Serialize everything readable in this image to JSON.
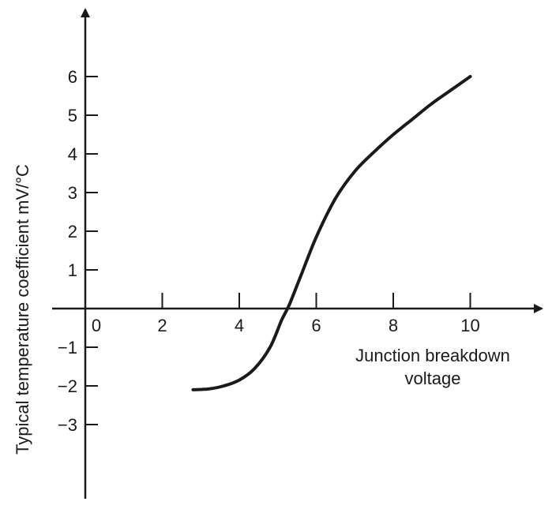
{
  "chart_data": {
    "type": "line",
    "title": "",
    "xlabel": [
      "Junction breakdown",
      "voltage"
    ],
    "ylabel": "Typical temperature coefficient mV/°C",
    "xlim": [
      -1,
      12
    ],
    "ylim": [
      -5,
      7.5
    ],
    "x_ticks": [
      0,
      2,
      4,
      6,
      8,
      10
    ],
    "y_ticks": [
      6,
      5,
      4,
      3,
      2,
      1,
      -1,
      -2,
      -3
    ],
    "series": [
      {
        "x": [
          2.8,
          3.2,
          3.6,
          4.0,
          4.4,
          4.8,
          5.1,
          5.3,
          5.6,
          6.0,
          6.5,
          7.0,
          7.5,
          8.0,
          8.5,
          9.0,
          9.5,
          10.0
        ],
        "values": [
          -2.1,
          -2.08,
          -2.0,
          -1.85,
          -1.55,
          -1.0,
          -0.3,
          0.1,
          0.85,
          1.85,
          2.85,
          3.55,
          4.05,
          4.5,
          4.9,
          5.3,
          5.65,
          6.0
        ]
      }
    ],
    "grid": false,
    "legend": "none"
  }
}
